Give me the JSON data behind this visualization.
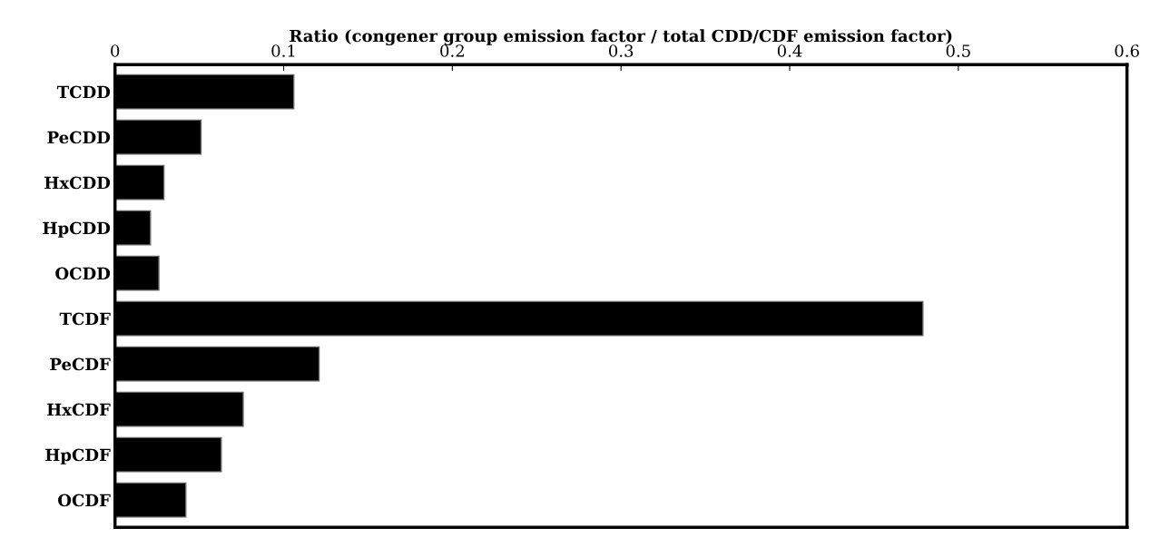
{
  "chart_data": {
    "type": "bar",
    "orientation": "horizontal",
    "xlabel": "Ratio (congener group emission factor / total CDD/CDF emission factor)",
    "categories": [
      "TCDD",
      "PeCDD",
      "HxCDD",
      "HpCDD",
      "OCDD",
      "TCDF",
      "PeCDF",
      "HxCDF",
      "HpCDF",
      "OCDF"
    ],
    "values": [
      0.106,
      0.051,
      0.029,
      0.021,
      0.026,
      0.479,
      0.121,
      0.076,
      0.063,
      0.042
    ],
    "color": "#000000",
    "xlim": [
      0,
      0.6
    ],
    "xticks": [
      0,
      0.1,
      0.2,
      0.3,
      0.4,
      0.5,
      0.6
    ],
    "grid": false
  }
}
